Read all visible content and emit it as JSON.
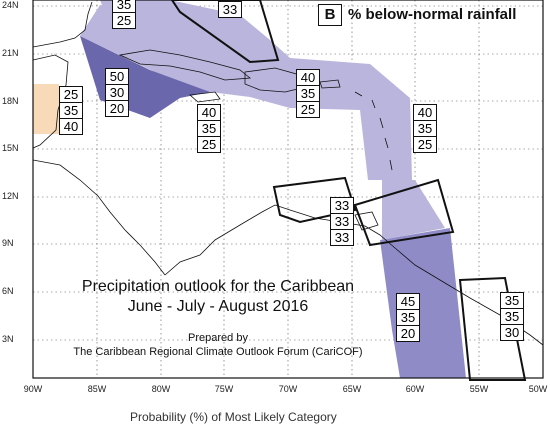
{
  "legend": {
    "key": "B",
    "label": "% below-normal rainfall"
  },
  "title": {
    "line1": "Precipitation outlook for the Caribbean",
    "line2": "June - July - August 2016"
  },
  "prepared": {
    "line1": "Prepared by",
    "line2": "The Caribbean Regional Climate Outlook Forum (CariCOF)"
  },
  "footer": "Probability (%) of Most Likely Category",
  "axes": {
    "lat_labels": [
      "24N",
      "21N",
      "18N",
      "15N",
      "12N",
      "9N",
      "6N",
      "3N"
    ],
    "lon_labels": [
      "90W",
      "85W",
      "80W",
      "75W",
      "70W",
      "65W",
      "60W",
      "55W",
      "50W"
    ]
  },
  "colors": {
    "light_below": "#b9b5dd",
    "medium_below": "#8f8bc7",
    "dark_below": "#6a67ac",
    "above_normal": "#f8d9b8",
    "frame": "#111111"
  },
  "prob_boxes": [
    {
      "id": "north-top",
      "values": [
        "35",
        "25"
      ]
    },
    {
      "id": "bahamas",
      "values": [
        "33"
      ]
    },
    {
      "id": "belize",
      "values": [
        "25",
        "35",
        "40"
      ]
    },
    {
      "id": "cuba-west",
      "values": [
        "50",
        "30",
        "20"
      ]
    },
    {
      "id": "jamaica",
      "values": [
        "40",
        "35",
        "25"
      ]
    },
    {
      "id": "hispaniola",
      "values": [
        "40",
        "35",
        "25"
      ]
    },
    {
      "id": "lesser-antilles",
      "values": [
        "40",
        "35",
        "25"
      ]
    },
    {
      "id": "abc-islands",
      "values": [
        "33",
        "33",
        "33"
      ]
    },
    {
      "id": "guyana",
      "values": [
        "45",
        "35",
        "20"
      ]
    },
    {
      "id": "suriname",
      "values": [
        "35",
        "35",
        "30"
      ]
    }
  ]
}
